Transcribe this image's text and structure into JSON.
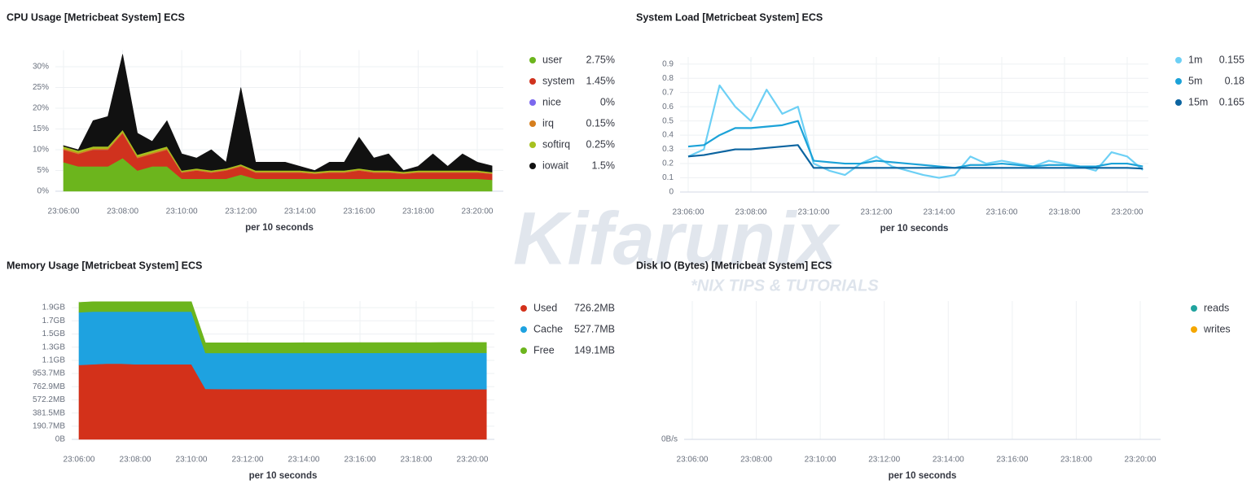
{
  "watermark": {
    "title": "Kifarunix",
    "tagline": "*NIX TIPS & TUTORIALS"
  },
  "chart_data": [
    {
      "type": "area",
      "stacked": true,
      "title": "CPU Usage [Metricbeat System] ECS",
      "x_label": "per 10 seconds",
      "grid": true,
      "x": [
        "23:06:00",
        "23:06:30",
        "23:07:00",
        "23:07:30",
        "23:08:00",
        "23:08:30",
        "23:09:00",
        "23:09:30",
        "23:10:00",
        "23:10:30",
        "23:11:00",
        "23:11:30",
        "23:12:00",
        "23:12:30",
        "23:13:00",
        "23:13:30",
        "23:14:00",
        "23:14:30",
        "23:15:00",
        "23:15:30",
        "23:16:00",
        "23:16:30",
        "23:17:00",
        "23:17:30",
        "23:18:00",
        "23:18:30",
        "23:19:00",
        "23:19:30",
        "23:20:00",
        "23:20:30"
      ],
      "xticks": [
        "23:06:00",
        "23:08:00",
        "23:10:00",
        "23:12:00",
        "23:14:00",
        "23:16:00",
        "23:18:00",
        "23:20:00"
      ],
      "ylim": [
        0,
        34
      ],
      "yticks": [
        {
          "value": 0,
          "label": "0%"
        },
        {
          "value": 5,
          "label": "5%"
        },
        {
          "value": 10,
          "label": "10%"
        },
        {
          "value": 15,
          "label": "15%"
        },
        {
          "value": 20,
          "label": "20%"
        },
        {
          "value": 25,
          "label": "25%"
        },
        {
          "value": 30,
          "label": "30%"
        }
      ],
      "series": [
        {
          "name": "user",
          "color": "#6cb51d",
          "legend_value": "2.75%",
          "values": [
            7,
            6,
            6,
            6,
            8,
            5,
            6,
            6,
            3,
            3,
            3,
            3,
            4,
            3,
            3,
            3,
            3,
            3,
            3,
            3,
            3,
            3,
            3,
            3,
            3,
            3,
            3,
            3,
            3,
            2.75
          ]
        },
        {
          "name": "system",
          "color": "#d0321e",
          "legend_value": "1.45%",
          "values": [
            3,
            3,
            4,
            4,
            6,
            3,
            3,
            4,
            1.5,
            2,
            1.5,
            2,
            2,
            1.5,
            1.5,
            1.5,
            1.5,
            1.2,
            1.5,
            1.5,
            2,
            1.5,
            1.5,
            1.2,
            1.5,
            1.5,
            1.5,
            1.5,
            1.5,
            1.45
          ]
        },
        {
          "name": "nice",
          "color": "#7b68ee",
          "legend_value": "0%",
          "values": [
            0,
            0,
            0,
            0,
            0,
            0,
            0,
            0,
            0,
            0,
            0,
            0,
            0,
            0,
            0,
            0,
            0,
            0,
            0,
            0,
            0,
            0,
            0,
            0,
            0,
            0,
            0,
            0,
            0,
            0
          ]
        },
        {
          "name": "irq",
          "color": "#d57e1e",
          "legend_value": "0.15%",
          "values": [
            0.3,
            0.3,
            0.3,
            0.3,
            0.3,
            0.3,
            0.3,
            0.3,
            0.2,
            0.2,
            0.2,
            0.2,
            0.2,
            0.2,
            0.2,
            0.2,
            0.2,
            0.2,
            0.2,
            0.2,
            0.2,
            0.2,
            0.2,
            0.2,
            0.2,
            0.2,
            0.2,
            0.2,
            0.2,
            0.15
          ]
        },
        {
          "name": "softirq",
          "color": "#a6c11f",
          "legend_value": "0.25%",
          "values": [
            0.5,
            0.5,
            0.5,
            0.5,
            0.5,
            0.5,
            0.5,
            0.5,
            0.3,
            0.3,
            0.3,
            0.3,
            0.3,
            0.3,
            0.3,
            0.3,
            0.3,
            0.3,
            0.3,
            0.3,
            0.3,
            0.3,
            0.3,
            0.3,
            0.3,
            0.3,
            0.3,
            0.3,
            0.3,
            0.25
          ]
        },
        {
          "name": "iowait",
          "color": "#111111",
          "legend_value": "1.5%",
          "values": [
            0.2,
            0.2,
            6.2,
            7.2,
            18.2,
            5.2,
            2.2,
            6.2,
            4,
            2.5,
            5,
            1.5,
            18.5,
            2,
            2,
            2,
            1,
            0.3,
            2,
            2,
            7.5,
            3,
            4,
            0.3,
            1,
            4,
            1,
            4,
            2,
            1.5
          ]
        }
      ]
    },
    {
      "type": "line",
      "title": "System Load [Metricbeat System] ECS",
      "x_label": "per 10 seconds",
      "grid": true,
      "x": [
        "23:06:00",
        "23:06:30",
        "23:07:00",
        "23:07:30",
        "23:08:00",
        "23:08:30",
        "23:09:00",
        "23:09:30",
        "23:10:00",
        "23:10:30",
        "23:11:00",
        "23:11:30",
        "23:12:00",
        "23:12:30",
        "23:13:00",
        "23:13:30",
        "23:14:00",
        "23:14:30",
        "23:15:00",
        "23:15:30",
        "23:16:00",
        "23:16:30",
        "23:17:00",
        "23:17:30",
        "23:18:00",
        "23:18:30",
        "23:19:00",
        "23:19:30",
        "23:20:00",
        "23:20:30"
      ],
      "xticks": [
        "23:06:00",
        "23:08:00",
        "23:10:00",
        "23:12:00",
        "23:14:00",
        "23:16:00",
        "23:18:00",
        "23:20:00"
      ],
      "ylim": [
        0,
        0.95
      ],
      "yticks": [
        0,
        0.1,
        0.2,
        0.3,
        0.4,
        0.5,
        0.6,
        0.7,
        0.8,
        0.9
      ],
      "series": [
        {
          "name": "1m",
          "color": "#6dd0f5",
          "legend_value": "0.155",
          "values": [
            0.25,
            0.3,
            0.75,
            0.6,
            0.5,
            0.72,
            0.55,
            0.6,
            0.2,
            0.15,
            0.12,
            0.2,
            0.25,
            0.18,
            0.15,
            0.12,
            0.1,
            0.12,
            0.25,
            0.2,
            0.22,
            0.2,
            0.18,
            0.22,
            0.2,
            0.18,
            0.15,
            0.28,
            0.25,
            0.155
          ]
        },
        {
          "name": "5m",
          "color": "#1ba2d8",
          "legend_value": "0.18",
          "values": [
            0.32,
            0.33,
            0.4,
            0.45,
            0.45,
            0.46,
            0.47,
            0.5,
            0.22,
            0.21,
            0.2,
            0.2,
            0.22,
            0.21,
            0.2,
            0.19,
            0.18,
            0.17,
            0.19,
            0.19,
            0.2,
            0.19,
            0.18,
            0.19,
            0.19,
            0.18,
            0.18,
            0.2,
            0.2,
            0.18
          ]
        },
        {
          "name": "15m",
          "color": "#0b64a0",
          "legend_value": "0.165",
          "values": [
            0.25,
            0.26,
            0.28,
            0.3,
            0.3,
            0.31,
            0.32,
            0.33,
            0.17,
            0.17,
            0.17,
            0.17,
            0.17,
            0.17,
            0.17,
            0.17,
            0.17,
            0.17,
            0.17,
            0.17,
            0.17,
            0.17,
            0.17,
            0.17,
            0.17,
            0.17,
            0.17,
            0.17,
            0.17,
            0.165
          ]
        }
      ]
    },
    {
      "type": "area",
      "stacked": true,
      "title": "Memory Usage [Metricbeat System] ECS",
      "x_label": "per 10 seconds",
      "grid": true,
      "x": [
        "23:06:00",
        "23:06:30",
        "23:07:00",
        "23:07:30",
        "23:08:00",
        "23:08:30",
        "23:09:00",
        "23:09:30",
        "23:10:00",
        "23:10:30",
        "23:11:00",
        "23:11:30",
        "23:12:00",
        "23:12:30",
        "23:13:00",
        "23:13:30",
        "23:14:00",
        "23:14:30",
        "23:15:00",
        "23:15:30",
        "23:16:00",
        "23:16:30",
        "23:17:00",
        "23:17:30",
        "23:18:00",
        "23:18:30",
        "23:19:00",
        "23:19:30",
        "23:20:00",
        "23:20:30"
      ],
      "xticks": [
        "23:06:00",
        "23:08:00",
        "23:10:00",
        "23:12:00",
        "23:14:00",
        "23:16:00",
        "23:18:00",
        "23:20:00"
      ],
      "ylim": [
        0,
        2100000000
      ],
      "yticks": [
        {
          "value": 0,
          "label": "0B"
        },
        {
          "value": 200000000,
          "label": "190.7MB"
        },
        {
          "value": 400000000,
          "label": "381.5MB"
        },
        {
          "value": 600000000,
          "label": "572.2MB"
        },
        {
          "value": 800000000,
          "label": "762.9MB"
        },
        {
          "value": 1000000000,
          "label": "953.7MB"
        },
        {
          "value": 1200000000,
          "label": "1.1GB"
        },
        {
          "value": 1400000000,
          "label": "1.3GB"
        },
        {
          "value": 1600000000,
          "label": "1.5GB"
        },
        {
          "value": 1800000000,
          "label": "1.7GB"
        },
        {
          "value": 2000000000,
          "label": "1.9GB"
        }
      ],
      "series": [
        {
          "name": "Used",
          "color": "#d3311a",
          "legend_value": "726.2MB",
          "values": [
            1130000000,
            1140000000,
            1150000000,
            1150000000,
            1140000000,
            1140000000,
            1140000000,
            1140000000,
            1140000000,
            766000000,
            765000000,
            764000000,
            763000000,
            763000000,
            762000000,
            762000000,
            762000000,
            762000000,
            762000000,
            762000000,
            762000000,
            762000000,
            762000000,
            762000000,
            762000000,
            762000000,
            762000000,
            762000000,
            762000000,
            761500000
          ]
        },
        {
          "name": "Cache",
          "color": "#1ea2e0",
          "legend_value": "527.7MB",
          "values": [
            800000000,
            800000000,
            790000000,
            790000000,
            800000000,
            800000000,
            800000000,
            800000000,
            800000000,
            545000000,
            546000000,
            547000000,
            548000000,
            548000000,
            549000000,
            549000000,
            550000000,
            550000000,
            550000000,
            551000000,
            551000000,
            551000000,
            552000000,
            552000000,
            552000000,
            552000000,
            553000000,
            553000000,
            553000000,
            553300000
          ]
        },
        {
          "name": "Free",
          "color": "#6cb51d",
          "legend_value": "149.1MB",
          "values": [
            150000000,
            150000000,
            150000000,
            150000000,
            150000000,
            150000000,
            150000000,
            150000000,
            150000000,
            156000000,
            156000000,
            156000000,
            156000000,
            156000000,
            156000000,
            156000000,
            156000000,
            156000000,
            156000000,
            156000000,
            156000000,
            156000000,
            156000000,
            156000000,
            156000000,
            156000000,
            156000000,
            156000000,
            156000000,
            156300000
          ]
        }
      ]
    },
    {
      "type": "line",
      "title": "Disk IO (Bytes) [Metricbeat System] ECS",
      "x_label": "per 10 seconds",
      "grid": true,
      "x": [],
      "xticks": [
        "23:06:00",
        "23:08:00",
        "23:10:00",
        "23:12:00",
        "23:14:00",
        "23:16:00",
        "23:18:00",
        "23:20:00"
      ],
      "ylim": [
        0,
        1
      ],
      "yticks": [
        {
          "value": 0,
          "label": "0B/s"
        }
      ],
      "series": [
        {
          "name": "reads",
          "color": "#20a39e",
          "values": []
        },
        {
          "name": "writes",
          "color": "#f5a700",
          "values": []
        }
      ]
    }
  ]
}
